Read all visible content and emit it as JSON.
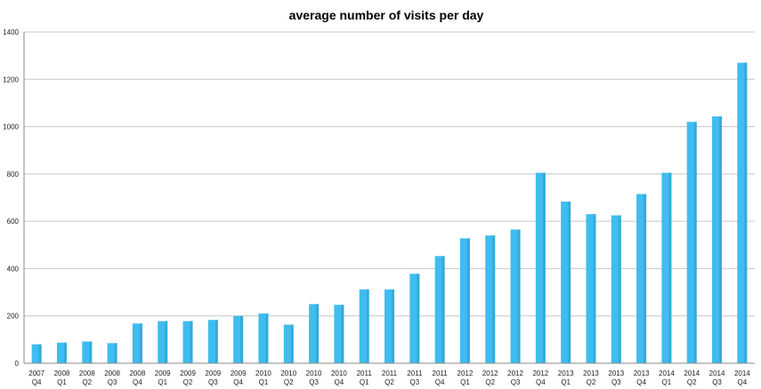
{
  "chart_data": {
    "type": "bar",
    "title": "average number of visits per day",
    "xlabel": "",
    "ylabel": "",
    "ylim": [
      0,
      1400
    ],
    "yticks": [
      0,
      200,
      400,
      600,
      800,
      1000,
      1200,
      1400
    ],
    "grid": true,
    "legend": "none",
    "bar_color": "#3fbdf0",
    "bar_shade_color": "#2e9bc9",
    "categories": [
      [
        "2007",
        "Q4"
      ],
      [
        "2008",
        "Q1"
      ],
      [
        "2008",
        "Q2"
      ],
      [
        "2008",
        "Q3"
      ],
      [
        "2008",
        "Q4"
      ],
      [
        "2009",
        "Q1"
      ],
      [
        "2009",
        "Q2"
      ],
      [
        "2009",
        "Q3"
      ],
      [
        "2009",
        "Q4"
      ],
      [
        "2010",
        "Q1"
      ],
      [
        "2010",
        "Q2"
      ],
      [
        "2010",
        "Q3"
      ],
      [
        "2010",
        "Q4"
      ],
      [
        "2011",
        "Q1"
      ],
      [
        "2011",
        "Q2"
      ],
      [
        "2011",
        "Q3"
      ],
      [
        "2011",
        "Q4"
      ],
      [
        "2012",
        "Q1"
      ],
      [
        "2012",
        "Q2"
      ],
      [
        "2012",
        "Q3"
      ],
      [
        "2012",
        "Q4"
      ],
      [
        "2013",
        "Q1"
      ],
      [
        "2013",
        "Q2"
      ],
      [
        "2013",
        "Q3"
      ],
      [
        "2013",
        "Q4"
      ],
      [
        "2014",
        "Q1"
      ],
      [
        "2014",
        "Q2"
      ],
      [
        "2014",
        "Q3"
      ],
      [
        "2014",
        "Q4"
      ]
    ],
    "values": [
      80,
      87,
      92,
      85,
      168,
      178,
      178,
      183,
      200,
      210,
      163,
      250,
      247,
      312,
      312,
      378,
      453,
      528,
      540,
      565,
      805,
      683,
      630,
      625,
      715,
      805,
      1020,
      1043,
      1270
    ]
  }
}
